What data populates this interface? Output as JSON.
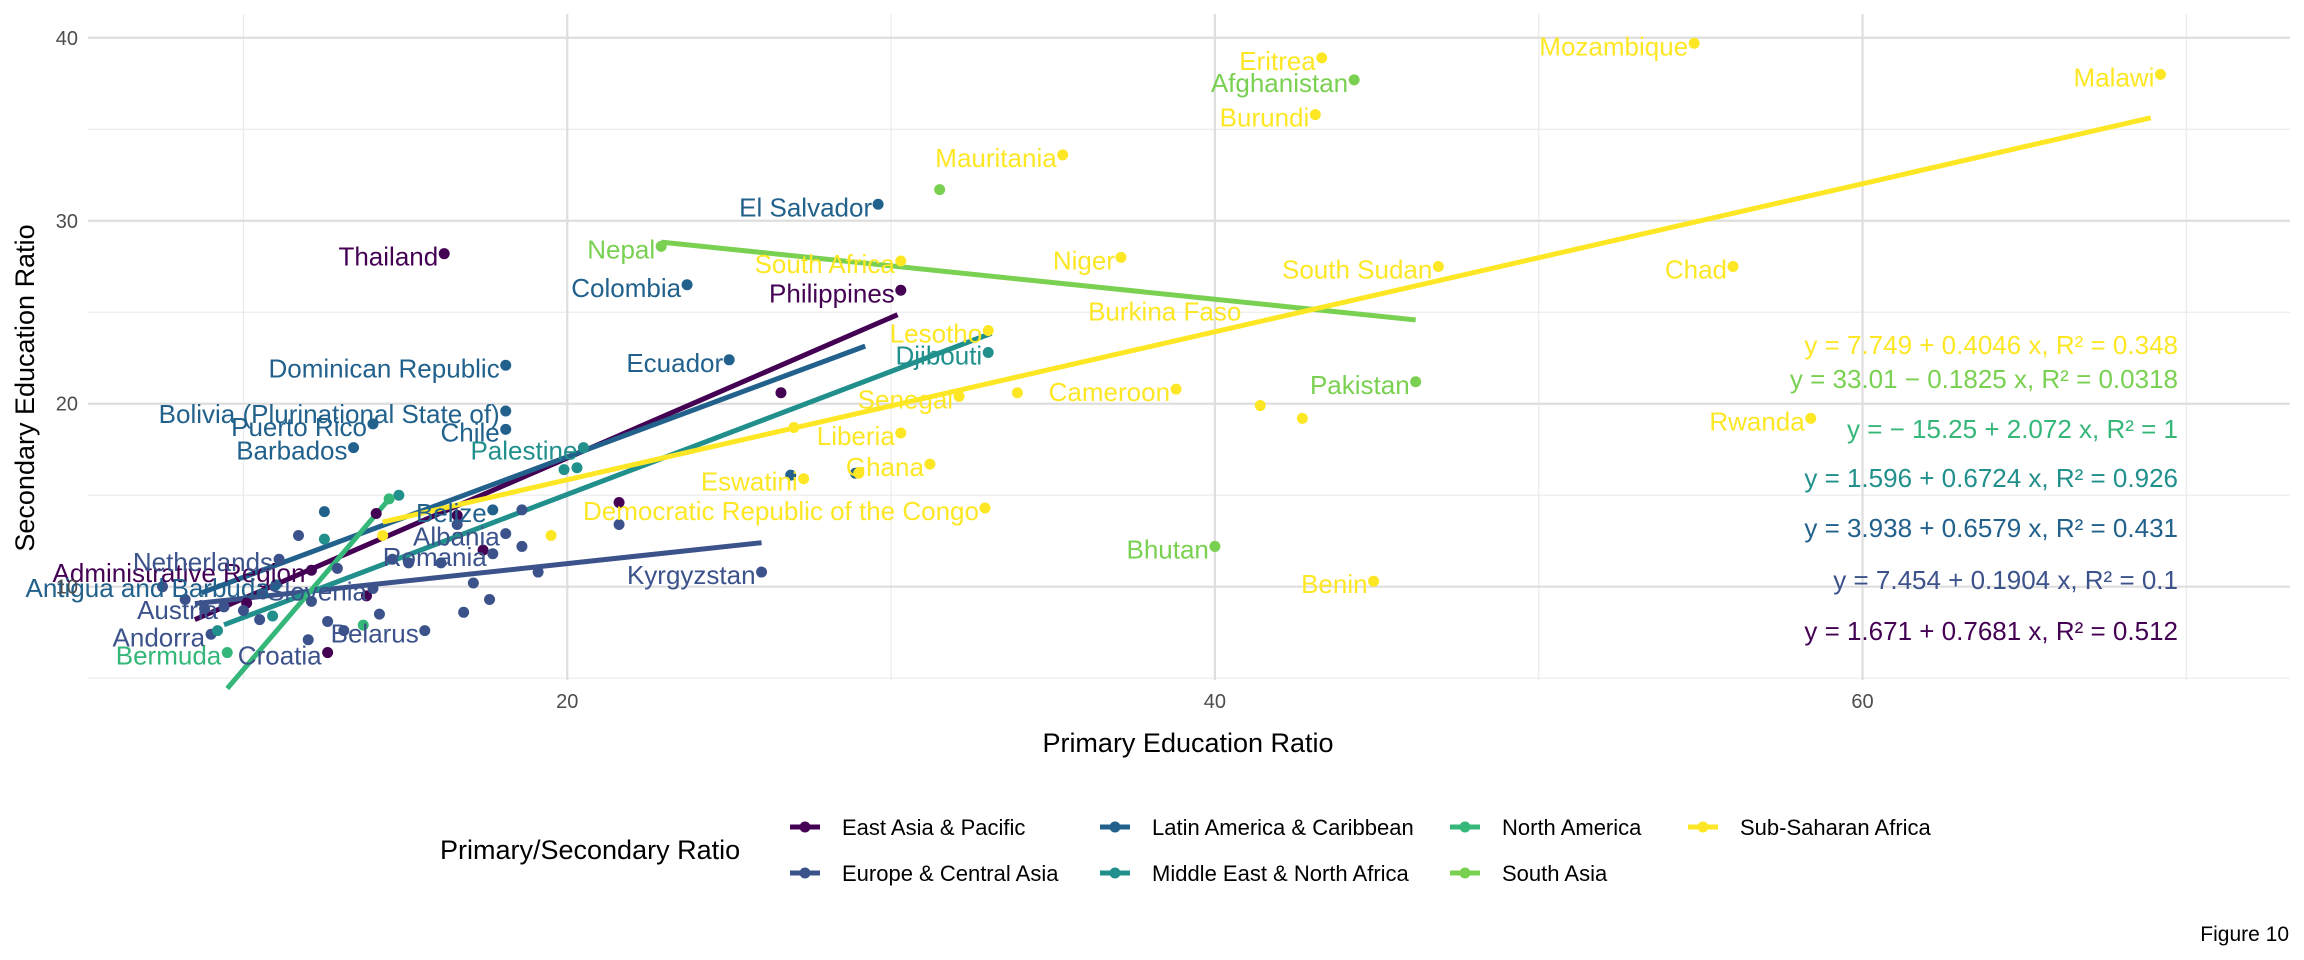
{
  "caption": "Figure 10",
  "chart_data": {
    "type": "scatter",
    "xlabel": "Primary Education Ratio",
    "ylabel": "Secondary Education Ratio",
    "xlim": [
      5.2,
      73.2
    ],
    "ylim": [
      4.9,
      41.3
    ],
    "xticks": [
      20,
      40,
      60
    ],
    "yticks": [
      10,
      20,
      30,
      40
    ],
    "grid": true,
    "legend_title": "Primary/Secondary Ratio",
    "legend_position": "bottom",
    "series": [
      {
        "name": "East Asia & Pacific",
        "color": "#440154",
        "fit": {
          "x": [
            8.5,
            30.2
          ],
          "intercept": 1.671,
          "slope": 0.7681
        },
        "equation": "y = 1.671 + 0.7681 x, R² = 0.512",
        "points": [
          [
            16.2,
            28.2
          ],
          [
            30.3,
            26.2
          ],
          [
            26.6,
            20.6
          ],
          [
            21.6,
            14.6
          ],
          [
            16.6,
            13.9
          ],
          [
            14.1,
            14.0
          ],
          [
            10.1,
            9.1
          ],
          [
            12.1,
            10.9
          ],
          [
            17.4,
            12.0
          ],
          [
            12.6,
            6.4
          ],
          [
            13.8,
            9.5
          ]
        ],
        "labels": [
          {
            "text": "Thailand",
            "x": 16.2,
            "y": 28.2
          },
          {
            "text": "Philippines",
            "x": 30.3,
            "y": 26.2
          },
          {
            "text": "Administrative Region",
            "x": 12.1,
            "y": 10.9
          }
        ]
      },
      {
        "name": "Europe & Central Asia",
        "color": "#3b528b",
        "fit": {
          "x": [
            8.5,
            26.0
          ],
          "intercept": 7.454,
          "slope": 0.1904
        },
        "equation": "y = 7.454 + 0.1904 x, R² = 0.1",
        "points": [
          [
            7.5,
            10.0
          ],
          [
            8.2,
            9.3
          ],
          [
            8.8,
            8.8
          ],
          [
            9.4,
            8.9
          ],
          [
            10.0,
            8.7
          ],
          [
            10.6,
            9.6
          ],
          [
            11.1,
            11.5
          ],
          [
            11.7,
            12.8
          ],
          [
            12.1,
            9.2
          ],
          [
            12.6,
            8.1
          ],
          [
            13.1,
            7.6
          ],
          [
            14.0,
            9.9
          ],
          [
            14.6,
            11.5
          ],
          [
            15.1,
            11.3
          ],
          [
            15.6,
            7.6
          ],
          [
            16.1,
            11.3
          ],
          [
            16.6,
            13.4
          ],
          [
            17.1,
            10.2
          ],
          [
            17.7,
            11.8
          ],
          [
            18.1,
            12.9
          ],
          [
            18.6,
            12.2
          ],
          [
            19.1,
            10.8
          ],
          [
            26.0,
            10.8
          ],
          [
            21.6,
            13.4
          ],
          [
            18.6,
            14.2
          ],
          [
            17.6,
            9.3
          ],
          [
            12.0,
            7.1
          ],
          [
            10.5,
            8.2
          ],
          [
            9.0,
            7.4
          ],
          [
            14.2,
            8.5
          ],
          [
            16.8,
            8.6
          ],
          [
            12.9,
            11.0
          ]
        ],
        "labels": [
          {
            "text": "Netherlands",
            "x": 11.1,
            "y": 11.5
          },
          {
            "text": "Albania",
            "x": 18.1,
            "y": 12.9
          },
          {
            "text": "Romania",
            "x": 17.7,
            "y": 11.8
          },
          {
            "text": "Austria",
            "x": 9.4,
            "y": 8.9
          },
          {
            "text": "Slovenia",
            "x": 14.0,
            "y": 9.9
          },
          {
            "text": "Belarus",
            "x": 15.6,
            "y": 7.6
          },
          {
            "text": "Andorra",
            "x": 9.0,
            "y": 7.4
          },
          {
            "text": "Croatia",
            "x": 12.6,
            "y": 6.4
          },
          {
            "text": "Kyrgyzstan",
            "x": 26.0,
            "y": 10.8
          }
        ]
      },
      {
        "name": "Latin America & Caribbean",
        "color": "#21618c",
        "fit": {
          "x": [
            8.7,
            29.2
          ],
          "intercept": 3.938,
          "slope": 0.6579
        },
        "equation": "y = 3.938 + 0.6579 x, R² = 0.431",
        "points": [
          [
            29.6,
            30.9
          ],
          [
            23.7,
            26.5
          ],
          [
            25.0,
            22.4
          ],
          [
            18.1,
            22.1
          ],
          [
            18.1,
            19.6
          ],
          [
            18.1,
            18.6
          ],
          [
            14.0,
            18.9
          ],
          [
            13.4,
            17.6
          ],
          [
            12.5,
            14.1
          ],
          [
            11.0,
            10.1
          ],
          [
            17.7,
            14.2
          ],
          [
            28.9,
            16.2
          ],
          [
            26.9,
            16.1
          ]
        ],
        "labels": [
          {
            "text": "El Salvador",
            "x": 29.6,
            "y": 30.9
          },
          {
            "text": "Colombia",
            "x": 23.7,
            "y": 26.5
          },
          {
            "text": "Ecuador",
            "x": 25.0,
            "y": 22.4
          },
          {
            "text": "Dominican Republic",
            "x": 18.1,
            "y": 22.1
          },
          {
            "text": "Bolivia (Plurinational State of)",
            "x": 18.1,
            "y": 19.6
          },
          {
            "text": "Chile",
            "x": 18.1,
            "y": 18.6
          },
          {
            "text": "Puerto Rico",
            "x": 14.0,
            "y": 18.9
          },
          {
            "text": "Barbados",
            "x": 13.4,
            "y": 17.6
          },
          {
            "text": "Belize",
            "x": 17.7,
            "y": 14.2
          },
          {
            "text": "Antigua and Barbuda",
            "x": 11.0,
            "y": 10.1
          }
        ]
      },
      {
        "name": "Middle East & North Africa",
        "color": "#21908c",
        "fit": {
          "x": [
            9.4,
            33.1
          ],
          "intercept": 1.596,
          "slope": 0.6724
        },
        "equation": "y = 1.596 + 0.6724 x, R² = 0.926",
        "points": [
          [
            33.0,
            22.8
          ],
          [
            20.3,
            16.5
          ],
          [
            9.2,
            7.6
          ],
          [
            10.9,
            8.4
          ],
          [
            14.8,
            15.0
          ],
          [
            12.5,
            12.6
          ],
          [
            19.9,
            16.4
          ],
          [
            20.5,
            17.6
          ]
        ],
        "labels": [
          {
            "text": "Djibouti",
            "x": 33.0,
            "y": 22.8
          },
          {
            "text": "Palestine",
            "x": 20.5,
            "y": 17.6
          }
        ]
      },
      {
        "name": "North America",
        "color": "#35b779",
        "fit": {
          "x": [
            9.5,
            14.5
          ],
          "intercept": -15.25,
          "slope": 2.072
        },
        "equation": "y = − 15.25 + 2.072 x, R² = 1",
        "points": [
          [
            9.5,
            6.4
          ],
          [
            13.7,
            7.9
          ],
          [
            14.5,
            14.8
          ]
        ],
        "labels": [
          {
            "text": "Bermuda",
            "x": 9.5,
            "y": 6.4
          }
        ]
      },
      {
        "name": "South Asia",
        "color": "#7ad151",
        "fit": {
          "x": [
            22.9,
            46.2
          ],
          "intercept": 33.01,
          "slope": -0.1825
        },
        "equation": "y = 33.01 − 0.1825 x, R² = 0.0318",
        "points": [
          [
            22.9,
            28.6
          ],
          [
            31.5,
            31.7
          ],
          [
            44.3,
            37.7
          ],
          [
            46.2,
            21.2
          ],
          [
            40.0,
            12.2
          ]
        ],
        "labels": [
          {
            "text": "Nepal",
            "x": 22.9,
            "y": 28.6
          },
          {
            "text": "Afghanistan",
            "x": 44.3,
            "y": 37.7
          },
          {
            "text": "Pakistan",
            "x": 46.2,
            "y": 21.2
          },
          {
            "text": "Bhutan",
            "x": 40.0,
            "y": 12.2
          }
        ]
      },
      {
        "name": "Sub-Saharan Africa",
        "color": "#fde725",
        "fit": {
          "x": [
            14.3,
            68.9
          ],
          "intercept": 7.749,
          "slope": 0.4046
        },
        "equation": "y = 7.749 + 0.4046 x, R² = 0.348",
        "points": [
          [
            54.8,
            39.7
          ],
          [
            69.2,
            38.0
          ],
          [
            43.3,
            38.9
          ],
          [
            43.1,
            35.8
          ],
          [
            35.3,
            33.6
          ],
          [
            37.1,
            28.0
          ],
          [
            46.9,
            27.5
          ],
          [
            56.0,
            27.5
          ],
          [
            30.3,
            27.8
          ],
          [
            33.0,
            24.0
          ],
          [
            32.1,
            20.4
          ],
          [
            30.3,
            18.4
          ],
          [
            27.3,
            15.9
          ],
          [
            29.0,
            16.2
          ],
          [
            31.2,
            16.7
          ],
          [
            32.9,
            14.3
          ],
          [
            38.8,
            20.8
          ],
          [
            41.4,
            19.9
          ],
          [
            42.7,
            19.2
          ],
          [
            44.9,
            10.3
          ],
          [
            58.4,
            19.2
          ],
          [
            14.3,
            12.8
          ],
          [
            19.5,
            12.8
          ],
          [
            33.9,
            20.6
          ],
          [
            27.0,
            18.7
          ]
        ],
        "labels": [
          {
            "text": "Mozambique",
            "x": 54.8,
            "y": 39.7
          },
          {
            "text": "Malawi",
            "x": 69.2,
            "y": 38.0
          },
          {
            "text": "Eritrea",
            "x": 43.3,
            "y": 38.9
          },
          {
            "text": "Burundi",
            "x": 43.1,
            "y": 35.8
          },
          {
            "text": "Mauritania",
            "x": 35.3,
            "y": 33.6
          },
          {
            "text": "Niger",
            "x": 37.1,
            "y": 28.0
          },
          {
            "text": "South Sudan",
            "x": 46.9,
            "y": 27.5
          },
          {
            "text": "Chad",
            "x": 56.0,
            "y": 27.5
          },
          {
            "text": "South Africa",
            "x": 30.3,
            "y": 27.8
          },
          {
            "text": "Burkina Faso",
            "x": 41.0,
            "y": 25.2
          },
          {
            "text": "Lesotho",
            "x": 33.0,
            "y": 24.0
          },
          {
            "text": "Senegal",
            "x": 32.1,
            "y": 20.4
          },
          {
            "text": "Liberia",
            "x": 30.3,
            "y": 18.4
          },
          {
            "text": "Eswatini",
            "x": 27.3,
            "y": 15.9
          },
          {
            "text": "Ghana",
            "x": 31.2,
            "y": 16.7
          },
          {
            "text": "Democratic Republic of the Congo",
            "x": 32.9,
            "y": 14.3
          },
          {
            "text": "Cameroon",
            "x": 38.8,
            "y": 20.8
          },
          {
            "text": "Rwanda",
            "x": 58.4,
            "y": 19.2
          },
          {
            "text": "Benin",
            "x": 44.9,
            "y": 10.3
          }
        ]
      }
    ]
  }
}
